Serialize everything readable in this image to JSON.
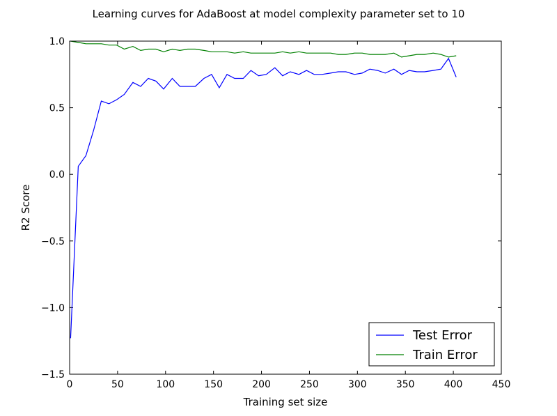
{
  "chart_data": {
    "type": "line",
    "title": "Learning curves for AdaBoost at model complexity parameter set to 10",
    "xlabel": "Training set size",
    "ylabel": "R2 Score",
    "xlim": [
      0,
      450
    ],
    "ylim": [
      -1.5,
      1.0
    ],
    "xticks": [
      0,
      50,
      100,
      150,
      200,
      250,
      300,
      350,
      400,
      450
    ],
    "xtick_labels": [
      "0",
      "50",
      "100",
      "150",
      "200",
      "250",
      "300",
      "350",
      "400",
      "450"
    ],
    "yticks": [
      -1.5,
      -1.0,
      -0.5,
      0.0,
      0.5,
      1.0
    ],
    "ytick_labels": [
      "−1.5",
      "−1.0",
      "−0.5",
      "0.0",
      "0.5",
      "1.0"
    ],
    "grid": false,
    "legend_position": "lower-right",
    "series": [
      {
        "name": "Test Error",
        "color": "#0000ff",
        "x": [
          1,
          9,
          17,
          25,
          33,
          41,
          49,
          57,
          66,
          74,
          82,
          90,
          98,
          107,
          115,
          123,
          131,
          140,
          148,
          156,
          164,
          172,
          181,
          189,
          197,
          205,
          214,
          222,
          230,
          239,
          247,
          255,
          263,
          272,
          280,
          288,
          297,
          305,
          313,
          321,
          329,
          338,
          346,
          354,
          362,
          370,
          379,
          387,
          395,
          403
        ],
        "y": [
          -1.23,
          0.06,
          0.14,
          0.33,
          0.55,
          0.53,
          0.56,
          0.6,
          0.69,
          0.66,
          0.72,
          0.7,
          0.64,
          0.72,
          0.66,
          0.66,
          0.66,
          0.72,
          0.75,
          0.65,
          0.75,
          0.72,
          0.72,
          0.78,
          0.74,
          0.75,
          0.8,
          0.74,
          0.77,
          0.75,
          0.78,
          0.75,
          0.75,
          0.76,
          0.77,
          0.77,
          0.75,
          0.76,
          0.79,
          0.78,
          0.76,
          0.79,
          0.75,
          0.78,
          0.77,
          0.77,
          0.78,
          0.79,
          0.87,
          0.73
        ]
      },
      {
        "name": "Train Error",
        "color": "#008000",
        "x": [
          1,
          9,
          17,
          25,
          33,
          41,
          49,
          57,
          66,
          74,
          82,
          90,
          98,
          107,
          115,
          123,
          131,
          140,
          148,
          156,
          164,
          172,
          181,
          189,
          197,
          205,
          214,
          222,
          230,
          239,
          247,
          255,
          263,
          272,
          280,
          288,
          297,
          305,
          313,
          321,
          329,
          338,
          346,
          354,
          362,
          370,
          379,
          387,
          395,
          403
        ],
        "y": [
          1.0,
          0.99,
          0.98,
          0.98,
          0.98,
          0.97,
          0.97,
          0.94,
          0.96,
          0.93,
          0.94,
          0.94,
          0.92,
          0.94,
          0.93,
          0.94,
          0.94,
          0.93,
          0.92,
          0.92,
          0.92,
          0.91,
          0.92,
          0.91,
          0.91,
          0.91,
          0.91,
          0.92,
          0.91,
          0.92,
          0.91,
          0.91,
          0.91,
          0.91,
          0.9,
          0.9,
          0.91,
          0.91,
          0.9,
          0.9,
          0.9,
          0.91,
          0.88,
          0.89,
          0.9,
          0.9,
          0.91,
          0.9,
          0.88,
          0.89
        ]
      }
    ]
  }
}
